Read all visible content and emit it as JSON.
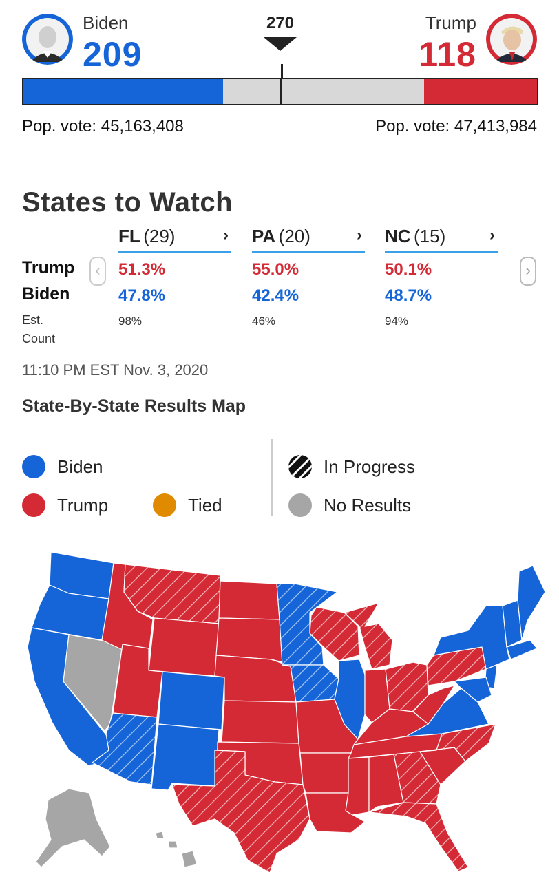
{
  "header": {
    "threshold": "270",
    "biden": {
      "name": "Biden",
      "votes": "209",
      "electoral": 209,
      "pop_label": "Pop. vote: 45,163,408"
    },
    "trump": {
      "name": "Trump",
      "votes": "118",
      "electoral": 118,
      "pop_label": "Pop. vote: 47,413,984"
    },
    "total_electoral": 538,
    "colors": {
      "biden": "#1565d8",
      "trump": "#d32a35",
      "tossup": "#d8d8d8"
    }
  },
  "states_to_watch": {
    "title": "States to Watch",
    "row_labels": {
      "trump": "Trump",
      "biden": "Biden",
      "est_count": "Est. Count"
    },
    "states": [
      {
        "abbr": "FL",
        "ev": "(29)",
        "trump": "51.3%",
        "biden": "47.8%",
        "count": "98%"
      },
      {
        "abbr": "PA",
        "ev": "(20)",
        "trump": "55.0%",
        "biden": "42.4%",
        "count": "46%"
      },
      {
        "abbr": "NC",
        "ev": "(15)",
        "trump": "50.1%",
        "biden": "48.7%",
        "count": "94%"
      }
    ],
    "timestamp": "11:10 PM EST Nov. 3, 2020"
  },
  "map": {
    "title": "State-By-State Results Map",
    "legend": {
      "biden": "Biden",
      "trump": "Trump",
      "tied": "Tied",
      "in_progress": "In Progress",
      "no_results": "No Results"
    },
    "colors": {
      "biden": "#1565d8",
      "trump": "#d32a35",
      "tied": "#e08a00",
      "no_results": "#a6a6a6",
      "in_progress": "#111111"
    }
  }
}
